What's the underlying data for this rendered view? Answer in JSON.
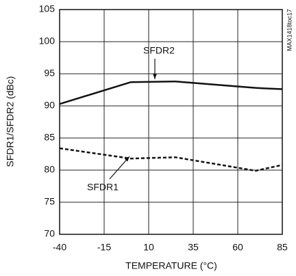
{
  "chart_data": {
    "type": "line",
    "xlabel": "TEMPERATURE (°C)",
    "ylabel": "SFDR1/SFDR2 (dBc)",
    "note": "MAX1418toc17",
    "x": [
      -40,
      0,
      25,
      70,
      85
    ],
    "series": [
      {
        "name": "SFDR2",
        "color": "#111111",
        "style": "solid",
        "values": [
          90.3,
          93.7,
          93.8,
          92.8,
          92.6
        ]
      },
      {
        "name": "SFDR1",
        "color": "#111111",
        "style": "dashed",
        "values": [
          83.4,
          81.8,
          82.0,
          79.9,
          80.8
        ]
      }
    ],
    "xlim": [
      -40,
      85
    ],
    "xticks": [
      -40,
      -15,
      10,
      35,
      60,
      85
    ],
    "ylim": [
      70,
      105
    ],
    "yticks": [
      70,
      75,
      80,
      85,
      90,
      95,
      100,
      105
    ],
    "grid": true
  }
}
